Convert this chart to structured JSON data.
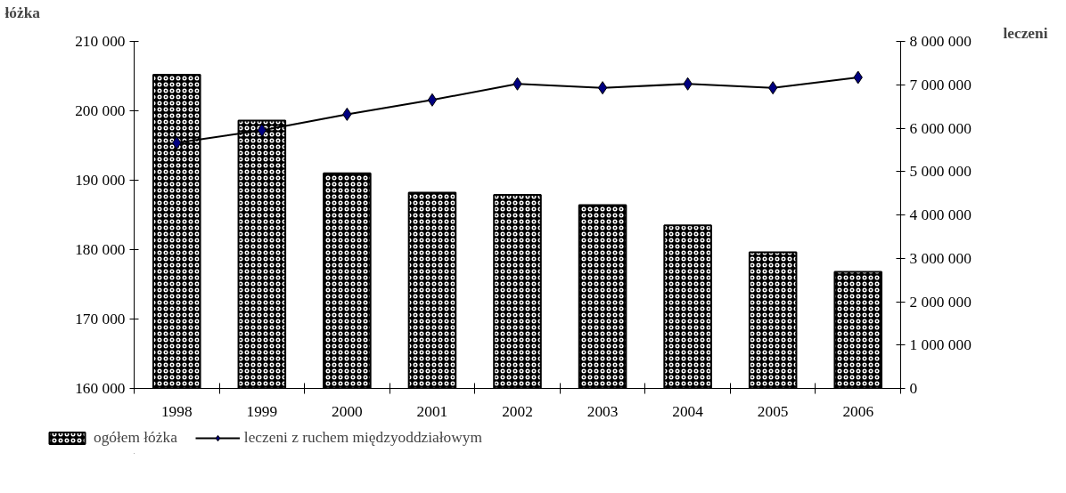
{
  "chart_data": {
    "type": "bar",
    "ylabel": "łóżka",
    "y2label": "leczeni",
    "categories": [
      "1998",
      "1999",
      "2000",
      "2001",
      "2002",
      "2003",
      "2004",
      "2005",
      "2006"
    ],
    "series": [
      {
        "name": "ogółem łóżka",
        "color": "#000000",
        "values": [
          205200,
          198600,
          191000,
          188200,
          187900,
          186400,
          183500,
          179600,
          176800
        ]
      },
      {
        "name": "leczeni z ruchem międzyoddziałowym",
        "type": "line",
        "axis": "y2",
        "color": "#000080",
        "marker": "diamond",
        "values": [
          5660000,
          5950000,
          6320000,
          6650000,
          7020000,
          6930000,
          7020000,
          6930000,
          7170000
        ]
      }
    ],
    "ylim": [
      160000,
      210000
    ],
    "yticks": [
      {
        "value": 160000,
        "label": "160 000"
      },
      {
        "value": 170000,
        "label": "170 000"
      },
      {
        "value": 180000,
        "label": "180 000"
      },
      {
        "value": 190000,
        "label": "190 000"
      },
      {
        "value": 200000,
        "label": "200 000"
      },
      {
        "value": 210000,
        "label": "210 000"
      }
    ],
    "y2lim": [
      0,
      8000000
    ],
    "y2ticks": [
      {
        "value": 0,
        "label": "0"
      },
      {
        "value": 1000000,
        "label": "1 000 000"
      },
      {
        "value": 2000000,
        "label": "2 000 000"
      },
      {
        "value": 3000000,
        "label": "3 000 000"
      },
      {
        "value": 4000000,
        "label": "4 000 000"
      },
      {
        "value": 5000000,
        "label": "5 000 000"
      },
      {
        "value": 6000000,
        "label": "6 000 000"
      },
      {
        "value": 7000000,
        "label": "7 000 000"
      },
      {
        "value": 8000000,
        "label": "8 000 000"
      }
    ],
    "grid": false,
    "legend": "bottom"
  }
}
